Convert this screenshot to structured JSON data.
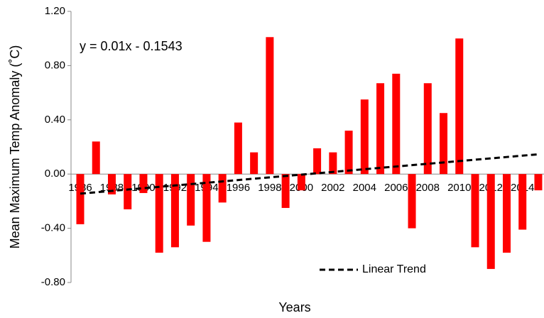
{
  "chart_data": {
    "type": "bar",
    "ylabel": "Mean Maximum Temp Anomaly (˚C)",
    "xlabel": "Years",
    "annotation": "y = 0.01x - 0.1543",
    "categories": [
      "1986",
      null,
      "1988",
      null,
      "1990",
      null,
      "1992",
      null,
      "1994",
      null,
      "1996",
      null,
      "1998",
      null,
      "2000",
      null,
      "2002",
      null,
      "2004",
      null,
      "2006",
      null,
      "2008",
      null,
      "2010",
      null,
      "2012",
      null,
      "2014",
      null
    ],
    "series": [
      {
        "name": null,
        "color": "#ff0000",
        "values": [
          -0.37,
          0.24,
          -0.15,
          -0.26,
          -0.14,
          -0.58,
          -0.54,
          -0.38,
          -0.5,
          -0.21,
          0.38,
          0.16,
          1.01,
          -0.25,
          -0.12,
          0.19,
          0.16,
          0.32,
          0.55,
          0.67,
          0.74,
          -0.4,
          0.67,
          0.45,
          1.0,
          -0.54,
          -0.7,
          -0.58,
          -0.41,
          -0.12
        ]
      },
      {
        "name": "Linear Trend",
        "type": "line",
        "color": "#000000",
        "values": [
          -0.1443,
          -0.1343,
          -0.1243,
          -0.1143,
          -0.1043,
          -0.0943,
          -0.0843,
          -0.0743,
          -0.0643,
          -0.0543,
          -0.0443,
          -0.0343,
          -0.0243,
          -0.0143,
          -0.0043,
          0.0057,
          0.0157,
          0.0257,
          0.0357,
          0.0457,
          0.0557,
          0.0657,
          0.0757,
          0.0857,
          0.0957,
          0.1057,
          0.1157,
          0.1257,
          0.1357,
          0.1457
        ]
      }
    ],
    "ylim": [
      -0.8,
      1.2
    ],
    "yticks": [
      {
        "value": -0.8,
        "label": "-0.80"
      },
      {
        "value": -0.4,
        "label": "-0.40"
      },
      {
        "value": 0,
        "label": "0.00"
      },
      {
        "value": 0.4,
        "label": "0.40"
      },
      {
        "value": 0.8,
        "label": "0.80"
      },
      {
        "value": 1.2,
        "label": "1.20"
      }
    ],
    "grid": false,
    "legend": "lower right"
  }
}
